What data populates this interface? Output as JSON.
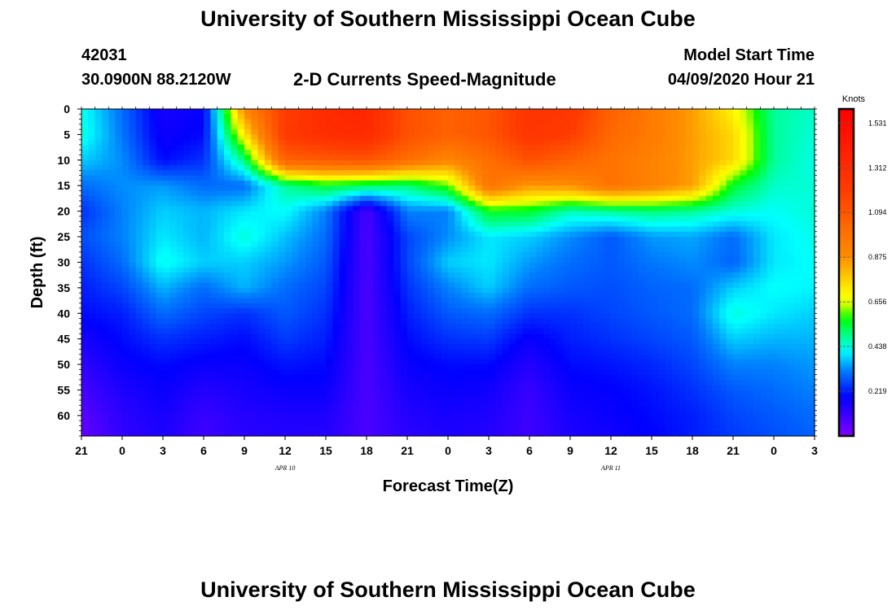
{
  "page": {
    "title_top": "University of Southern Mississippi Ocean Cube",
    "title_bottom": "University of Southern Mississippi Ocean Cube",
    "station_id": "42031",
    "coordinates": "30.0900N 88.2120W",
    "plot_title": "2-D Currents Speed-Magnitude",
    "model_start_label": "Model Start Time",
    "model_start_value": "04/09/2020 Hour 21"
  },
  "chart_data": {
    "type": "heatmap",
    "title": "2-D Currents Speed-Magnitude",
    "xlabel": "Forecast Time(Z)",
    "ylabel": "Depth (ft)",
    "x_tick_labels": [
      "21",
      "0",
      "3",
      "6",
      "9",
      "12",
      "15",
      "18",
      "21",
      "0",
      "3",
      "6",
      "9",
      "12",
      "15",
      "18",
      "21",
      "0",
      "3"
    ],
    "date_labels": [
      {
        "text": "APR 10",
        "at_tick_index": 5
      },
      {
        "text": "APR 11",
        "at_tick_index": 13
      }
    ],
    "y_tick_labels": [
      "0",
      "5",
      "10",
      "15",
      "20",
      "25",
      "30",
      "35",
      "40",
      "45",
      "50",
      "55",
      "60"
    ],
    "x_range_hours": [
      0,
      54
    ],
    "depth_range_ft": [
      0,
      64
    ],
    "colorbar": {
      "label": "Knots",
      "ticks": [
        "1.531",
        "1.312",
        "1.094",
        "0.875",
        "0.656",
        "0.438",
        "0.219"
      ],
      "range": [
        0.0,
        1.6
      ]
    },
    "grid_x_hours": [
      0,
      3,
      6,
      9,
      12,
      15,
      18,
      21,
      24,
      27,
      30,
      33,
      36,
      39,
      42,
      45,
      48,
      51,
      54
    ],
    "grid_depth_ft": [
      0,
      5,
      10,
      15,
      20,
      25,
      30,
      35,
      40,
      45,
      50,
      55,
      60,
      64
    ],
    "speed_knots": [
      [
        0.43,
        0.3,
        0.16,
        0.18,
        0.9,
        1.2,
        1.32,
        1.35,
        1.12,
        1.05,
        1.1,
        1.25,
        1.25,
        1.05,
        0.95,
        0.85,
        0.7,
        0.48,
        0.45
      ],
      [
        0.44,
        0.31,
        0.17,
        0.2,
        0.72,
        1.22,
        1.3,
        1.32,
        1.12,
        1.05,
        1.1,
        1.25,
        1.2,
        1.02,
        0.95,
        0.85,
        0.75,
        0.48,
        0.44
      ],
      [
        0.38,
        0.33,
        0.2,
        0.24,
        0.5,
        1.05,
        1.08,
        1.1,
        1.0,
        0.9,
        1.0,
        1.12,
        1.05,
        0.98,
        0.92,
        0.85,
        0.75,
        0.48,
        0.43
      ],
      [
        0.3,
        0.33,
        0.34,
        0.3,
        0.3,
        0.48,
        0.55,
        0.52,
        0.5,
        0.6,
        0.98,
        0.86,
        0.88,
        0.98,
        0.92,
        0.85,
        0.55,
        0.45,
        0.44
      ],
      [
        0.24,
        0.32,
        0.38,
        0.36,
        0.4,
        0.42,
        0.32,
        0.08,
        0.32,
        0.32,
        0.56,
        0.55,
        0.46,
        0.48,
        0.5,
        0.48,
        0.44,
        0.42,
        0.44
      ],
      [
        0.27,
        0.32,
        0.4,
        0.36,
        0.44,
        0.37,
        0.3,
        0.08,
        0.26,
        0.33,
        0.4,
        0.38,
        0.33,
        0.28,
        0.34,
        0.35,
        0.3,
        0.4,
        0.43
      ],
      [
        0.24,
        0.3,
        0.43,
        0.38,
        0.38,
        0.34,
        0.28,
        0.08,
        0.26,
        0.38,
        0.4,
        0.34,
        0.3,
        0.28,
        0.31,
        0.33,
        0.29,
        0.4,
        0.42
      ],
      [
        0.22,
        0.26,
        0.36,
        0.3,
        0.36,
        0.3,
        0.26,
        0.08,
        0.24,
        0.32,
        0.38,
        0.3,
        0.28,
        0.27,
        0.29,
        0.3,
        0.38,
        0.42,
        0.41
      ],
      [
        0.2,
        0.22,
        0.3,
        0.26,
        0.24,
        0.28,
        0.24,
        0.08,
        0.22,
        0.28,
        0.3,
        0.24,
        0.24,
        0.26,
        0.28,
        0.3,
        0.44,
        0.4,
        0.38
      ],
      [
        0.16,
        0.2,
        0.24,
        0.22,
        0.2,
        0.25,
        0.22,
        0.08,
        0.2,
        0.24,
        0.25,
        0.18,
        0.22,
        0.24,
        0.26,
        0.28,
        0.38,
        0.36,
        0.36
      ],
      [
        0.12,
        0.18,
        0.2,
        0.18,
        0.18,
        0.21,
        0.2,
        0.08,
        0.18,
        0.2,
        0.2,
        0.14,
        0.2,
        0.21,
        0.23,
        0.26,
        0.32,
        0.32,
        0.34
      ],
      [
        0.09,
        0.15,
        0.18,
        0.14,
        0.16,
        0.18,
        0.18,
        0.08,
        0.16,
        0.18,
        0.17,
        0.11,
        0.18,
        0.19,
        0.21,
        0.24,
        0.28,
        0.3,
        0.32
      ],
      [
        0.06,
        0.13,
        0.16,
        0.11,
        0.14,
        0.15,
        0.15,
        0.08,
        0.14,
        0.16,
        0.15,
        0.1,
        0.16,
        0.18,
        0.2,
        0.22,
        0.26,
        0.28,
        0.3
      ],
      [
        0.04,
        0.12,
        0.15,
        0.1,
        0.13,
        0.14,
        0.14,
        0.08,
        0.13,
        0.15,
        0.14,
        0.1,
        0.15,
        0.17,
        0.19,
        0.22,
        0.25,
        0.27,
        0.29
      ]
    ]
  }
}
